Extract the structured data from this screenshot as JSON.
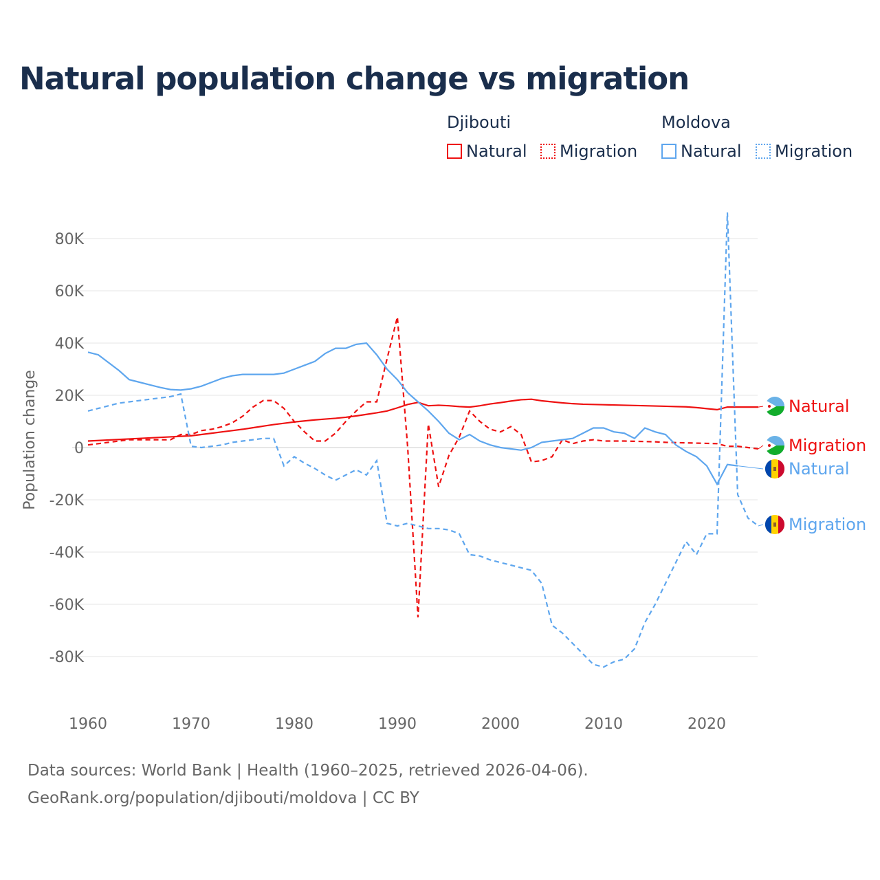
{
  "title": "Natural population change vs migration",
  "legend": {
    "groups": [
      {
        "name": "Djibouti",
        "color": "#ee1111"
      },
      {
        "name": "Moldova",
        "color": "#5ea6ee"
      }
    ],
    "items": [
      "Natural",
      "Migration",
      "Natural",
      "Migration"
    ]
  },
  "footer": {
    "line1": "Data sources: World Bank | Health (1960–2025, retrieved 2026-04-06).",
    "line2": "GeoRank.org/population/djibouti/moldova | CC BY"
  },
  "chart_data": {
    "type": "line",
    "title": "Natural population change vs migration",
    "xlabel": "",
    "ylabel": "Population change",
    "xlim": [
      1960,
      2025
    ],
    "ylim": [
      -100000,
      95000
    ],
    "x_ticks": [
      "1960",
      "1970",
      "1980",
      "1990",
      "2000",
      "2010",
      "2020"
    ],
    "y_ticks": [
      "80K",
      "60K",
      "40K",
      "20K",
      "0",
      "-20K",
      "-40K",
      "-60K",
      "-80K"
    ],
    "y_tick_values": [
      80000,
      60000,
      40000,
      20000,
      0,
      -20000,
      -40000,
      -60000,
      -80000
    ],
    "grid": true,
    "end_labels": [
      "Natural",
      "Migration",
      "Natural",
      "Migration"
    ],
    "series": [
      {
        "name": "Djibouti Natural",
        "country": "Djibouti",
        "kind": "Natural",
        "color": "#ee1111",
        "dash": false,
        "start": 1960,
        "values": [
          2500,
          2700,
          2900,
          3100,
          3300,
          3500,
          3700,
          3900,
          4100,
          4300,
          4500,
          5000,
          5500,
          6000,
          6500,
          7000,
          7600,
          8200,
          8800,
          9300,
          9800,
          10200,
          10600,
          10900,
          11200,
          11600,
          12100,
          12700,
          13300,
          14000,
          15200,
          16500,
          17300,
          16000,
          16200,
          16000,
          15700,
          15500,
          16000,
          16700,
          17200,
          17800,
          18300,
          18500,
          17900,
          17500,
          17100,
          16800,
          16600,
          16500,
          16400,
          16300,
          16200,
          16100,
          16000,
          15900,
          15800,
          15700,
          15600,
          15300,
          14900,
          14500,
          15500,
          15500,
          15500,
          15500
        ]
      },
      {
        "name": "Djibouti Migration",
        "country": "Djibouti",
        "kind": "Migration",
        "color": "#ee1111",
        "dash": true,
        "start": 1960,
        "values": [
          1000,
          1500,
          2000,
          2500,
          3000,
          3000,
          3000,
          3000,
          3000,
          5000,
          5000,
          6500,
          7000,
          8000,
          9500,
          12000,
          15500,
          18000,
          18000,
          15000,
          10000,
          6000,
          2500,
          2500,
          5500,
          10000,
          14000,
          17500,
          17500,
          34000,
          50000,
          0,
          -65000,
          9000,
          -15000,
          -3000,
          4000,
          14000,
          10000,
          7000,
          6000,
          8000,
          5000,
          -5500,
          -5000,
          -3500,
          3000,
          1500,
          2500,
          3000,
          2500,
          2500,
          2500,
          2400,
          2300,
          2200,
          2000,
          1900,
          1800,
          1700,
          1600,
          1500,
          500,
          500,
          0,
          -500
        ]
      },
      {
        "name": "Moldova Natural",
        "country": "Moldova",
        "kind": "Natural",
        "color": "#5ea6ee",
        "dash": false,
        "start": 1960,
        "values": [
          36500,
          35500,
          32500,
          29500,
          26000,
          25000,
          24000,
          23000,
          22200,
          22000,
          22500,
          23500,
          25000,
          26500,
          27500,
          28000,
          28000,
          28000,
          28000,
          28500,
          30000,
          31500,
          33000,
          36000,
          38000,
          38000,
          39500,
          40000,
          35500,
          30000,
          26000,
          21000,
          17500,
          14000,
          10000,
          5500,
          3000,
          5000,
          2500,
          1000,
          0,
          -500,
          -1000,
          0,
          2000,
          2500,
          3000,
          3500,
          5500,
          7500,
          7500,
          6000,
          5500,
          3500,
          7500,
          6000,
          5000,
          1000,
          -1500,
          -3500,
          -7000,
          -14000,
          -6500,
          -7000
        ]
      },
      {
        "name": "Moldova Migration",
        "country": "Moldova",
        "kind": "Migration",
        "color": "#5ea6ee",
        "dash": true,
        "start": 1960,
        "values": [
          14000,
          15000,
          16000,
          17000,
          17500,
          18000,
          18500,
          19000,
          19500,
          20500,
          500,
          0,
          500,
          1000,
          2000,
          2500,
          3000,
          3500,
          3500,
          -7000,
          -3500,
          -6000,
          -8000,
          -10500,
          -12500,
          -10500,
          -8500,
          -10500,
          -5000,
          -29000,
          -30000,
          -29000,
          -30000,
          -31000,
          -31000,
          -31500,
          -33000,
          -41000,
          -41500,
          -43000,
          -44000,
          -45000,
          -46000,
          -47000,
          -52000,
          -68000,
          -71000,
          -75000,
          -79000,
          -83000,
          -84000,
          -82000,
          -81000,
          -77000,
          -67000,
          -60000,
          -52000,
          -44000,
          -36000,
          -41000,
          -33000,
          -33000,
          90000,
          -18000,
          -27000,
          -30000
        ]
      }
    ]
  }
}
